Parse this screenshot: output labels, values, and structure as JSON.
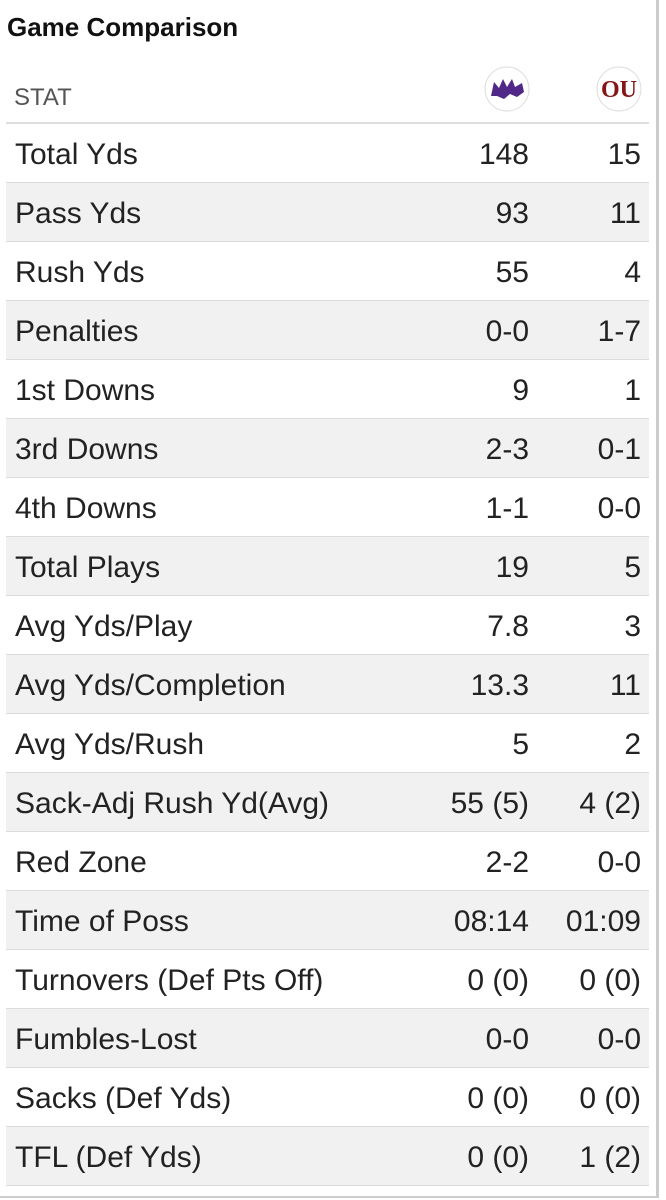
{
  "header": {
    "title": "Game Comparison",
    "stat_label": "STAT"
  },
  "table": {
    "rows": [
      [
        "Total Yds",
        "148",
        "15"
      ],
      [
        "Pass Yds",
        "93",
        "11"
      ],
      [
        "Rush Yds",
        "55",
        "4"
      ],
      [
        "Penalties",
        "0-0",
        "1-7"
      ],
      [
        "1st Downs",
        "9",
        "1"
      ],
      [
        "3rd Downs",
        "2-3",
        "0-1"
      ],
      [
        "4th Downs",
        "1-1",
        "0-0"
      ],
      [
        "Total Plays",
        "19",
        "5"
      ],
      [
        "Avg Yds/Play",
        "7.8",
        "3"
      ],
      [
        "Avg Yds/Completion",
        "13.3",
        "11"
      ],
      [
        "Avg Yds/Rush",
        "5",
        "2"
      ],
      [
        "Sack-Adj Rush Yd(Avg)",
        "55 (5)",
        "4 (2)"
      ],
      [
        "Red Zone",
        "2-2",
        "0-0"
      ],
      [
        "Time of Poss",
        "08:14",
        "01:09"
      ],
      [
        "Turnovers (Def Pts Off)",
        "0 (0)",
        "0 (0)"
      ],
      [
        "Fumbles-Lost",
        "0-0",
        "0-0"
      ],
      [
        "Sacks (Def Yds)",
        "0 (0)",
        "0 (0)"
      ],
      [
        "TFL (Def Yds)",
        "0 (0)",
        "1 (2)"
      ]
    ]
  }
}
